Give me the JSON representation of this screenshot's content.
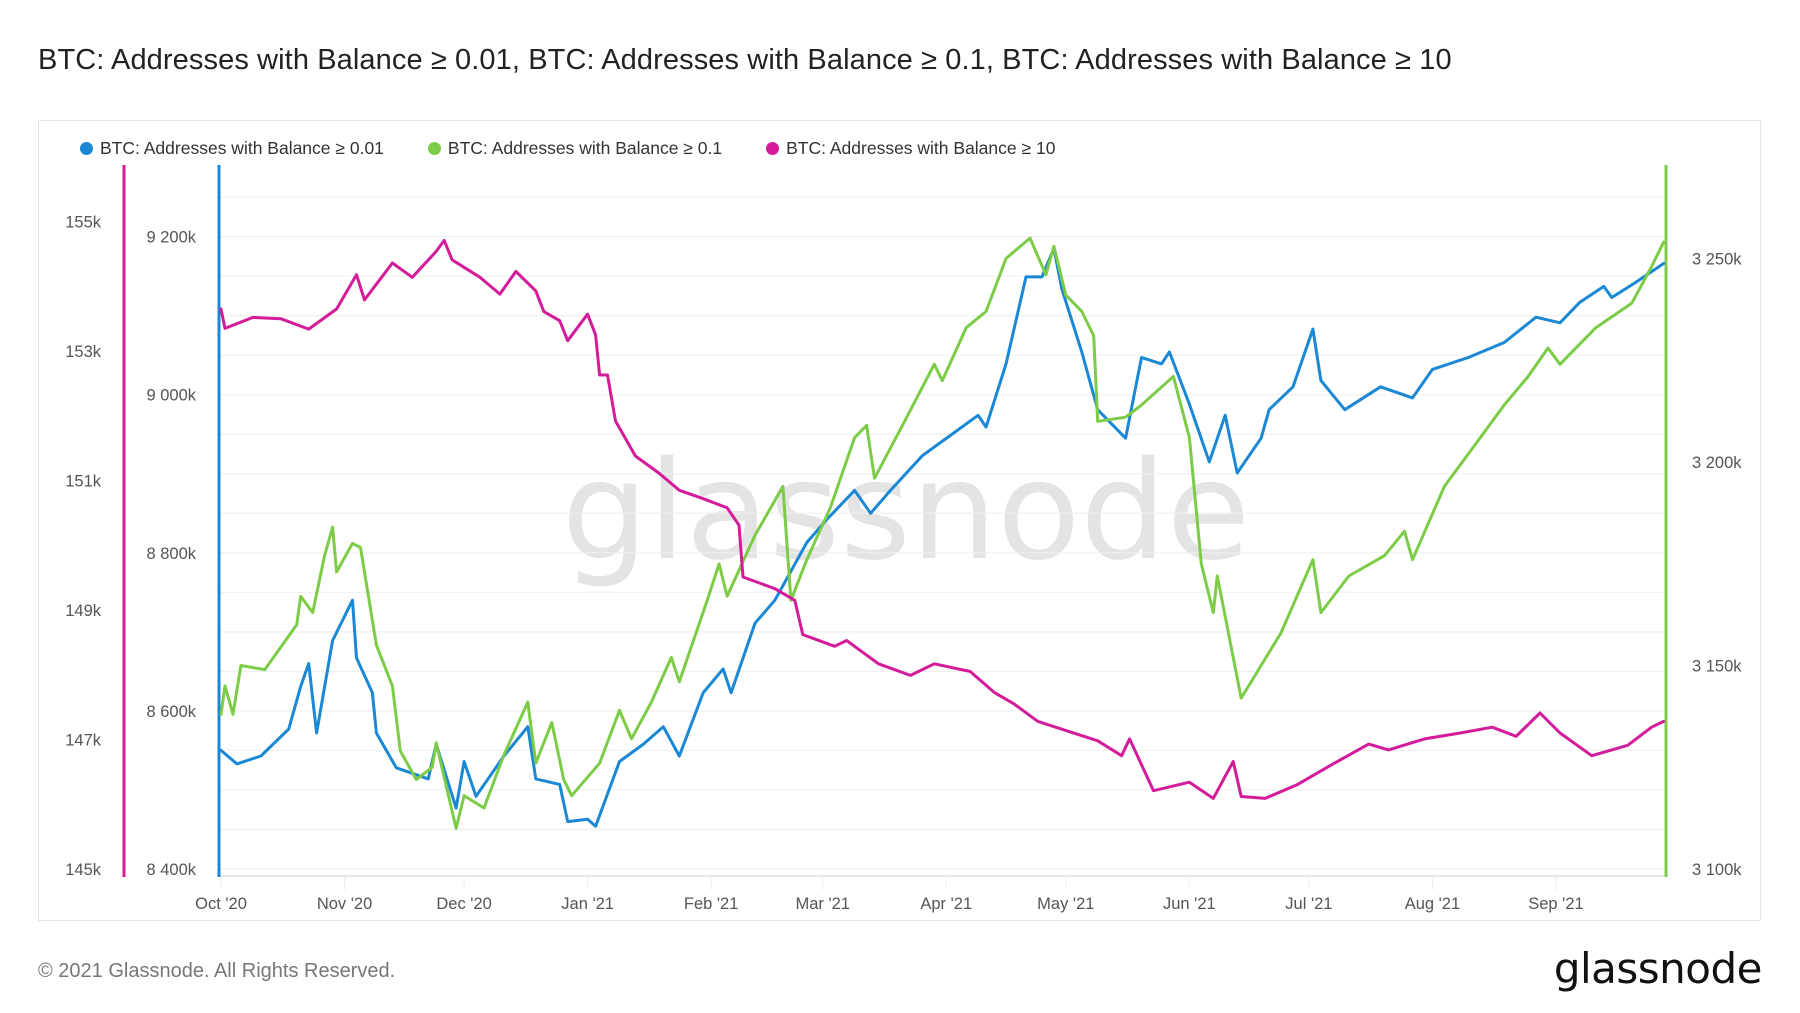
{
  "title": "BTC: Addresses with Balance ≥ 0.01, BTC: Addresses with Balance ≥ 0.1, BTC: Addresses with Balance ≥ 10",
  "footer": {
    "copyright": "© 2021 Glassnode. All Rights Reserved.",
    "logo": "glassnode",
    "watermark": "glassnode"
  },
  "chart_data": {
    "type": "line",
    "title": "BTC: Addresses with Balance ≥ 0.01, BTC: Addresses with Balance ≥ 0.1, BTC: Addresses with Balance ≥ 10",
    "x_unit": "days since 2020-10-01",
    "x_ticks": [
      {
        "label": "Oct '20",
        "day": 0
      },
      {
        "label": "Nov '20",
        "day": 31
      },
      {
        "label": "Dec '20",
        "day": 61
      },
      {
        "label": "Jan '21",
        "day": 92
      },
      {
        "label": "Feb '21",
        "day": 123
      },
      {
        "label": "Mar '21",
        "day": 151
      },
      {
        "label": "Apr '21",
        "day": 182
      },
      {
        "label": "May '21",
        "day": 212
      },
      {
        "label": "Jun '21",
        "day": 243
      },
      {
        "label": "Jul '21",
        "day": 273
      },
      {
        "label": "Aug '21",
        "day": 304
      },
      {
        "label": "Sep '21",
        "day": 335
      }
    ],
    "xlim": [
      0,
      362
    ],
    "axes": {
      "left": {
        "series": "BTC: Addresses with Balance ≥ 10",
        "color": "#d41c9a",
        "ticks": [
          "145k",
          "147k",
          "149k",
          "151k",
          "153k",
          "155k"
        ],
        "tick_values": [
          145,
          147,
          149,
          151,
          153,
          155
        ],
        "ylim": [
          145,
          155
        ],
        "unit": "k"
      },
      "middle": {
        "series": "BTC: Addresses with Balance ≥ 0.01",
        "color": "#1a88d4",
        "ticks": [
          "8 400k",
          "8 600k",
          "8 800k",
          "9 000k",
          "9 200k"
        ],
        "tick_values": [
          8400,
          8600,
          8800,
          9000,
          9200
        ],
        "ylim": [
          8400,
          9200
        ],
        "unit": "k"
      },
      "right": {
        "series": "BTC: Addresses with Balance ≥ 0.1",
        "color": "#7ccc48",
        "ticks": [
          "3 100k",
          "3 150k",
          "3 200k",
          "3 250k"
        ],
        "tick_values": [
          3100,
          3150,
          3200,
          3250
        ],
        "ylim": [
          3100,
          3250
        ],
        "unit": "k"
      }
    },
    "legend_position": "top-left",
    "series": [
      {
        "name": "BTC: Addresses with Balance ≥ 0.01",
        "axis": "middle",
        "color": "#1a88d4",
        "x": [
          0,
          4,
          10,
          17,
          20,
          22,
          24,
          28,
          33,
          34,
          38,
          39,
          44,
          52,
          54,
          59,
          61,
          64,
          71,
          77,
          79,
          85,
          87,
          92,
          94,
          100,
          106,
          111,
          115,
          121,
          126,
          128,
          134,
          139,
          147,
          152,
          159,
          163,
          168,
          176,
          184,
          190,
          192,
          197,
          202,
          206,
          209,
          211,
          216,
          220,
          227,
          231,
          236,
          238,
          243,
          248,
          252,
          255,
          261,
          263,
          269,
          274,
          276,
          282,
          291,
          299,
          304,
          313,
          322,
          330,
          336,
          341,
          347,
          349,
          355,
          362
        ],
        "values": [
          8550,
          8533,
          8543,
          8577,
          8631,
          8660,
          8572,
          8689,
          8740,
          8667,
          8623,
          8572,
          8528,
          8514,
          8558,
          8477,
          8536,
          8492,
          8543,
          8580,
          8514,
          8507,
          8460,
          8463,
          8454,
          8536,
          8558,
          8580,
          8543,
          8623,
          8653,
          8623,
          8711,
          8740,
          8813,
          8842,
          8879,
          8850,
          8879,
          8923,
          8952,
          8974,
          8959,
          9039,
          9149,
          9149,
          9185,
          9134,
          9054,
          8981,
          8945,
          9047,
          9039,
          9054,
          8988,
          8915,
          8974,
          8901,
          8945,
          8981,
          9010,
          9083,
          9018,
          8981,
          9010,
          8996,
          9032,
          9047,
          9066,
          9098,
          9091,
          9117,
          9137,
          9123,
          9142,
          9166
        ]
      },
      {
        "name": "BTC: Addresses with Balance ≥ 0.1",
        "axis": "right",
        "color": "#7ccc48",
        "x": [
          0,
          1,
          3,
          5,
          11,
          19,
          20,
          23,
          26,
          28,
          29,
          33,
          35,
          39,
          43,
          45,
          49,
          53,
          54,
          59,
          61,
          66,
          71,
          77,
          79,
          83,
          86,
          88,
          95,
          100,
          103,
          108,
          113,
          115,
          122,
          125,
          127,
          134,
          141,
          143,
          147,
          153,
          159,
          162,
          164,
          171,
          179,
          181,
          187,
          192,
          197,
          203,
          207,
          209,
          212,
          216,
          219,
          220,
          227,
          231,
          239,
          243,
          246,
          249,
          250,
          254,
          256,
          261,
          266,
          274,
          276,
          283,
          292,
          297,
          299,
          307,
          316,
          322,
          328,
          333,
          336,
          345,
          354,
          359,
          362
        ],
        "values": [
          3138,
          3145,
          3138,
          3150,
          3149,
          3160,
          3167,
          3163,
          3177,
          3184,
          3173,
          3180,
          3179,
          3155,
          3145,
          3129,
          3122,
          3125,
          3131,
          3110,
          3118,
          3115,
          3128,
          3141,
          3126,
          3136,
          3122,
          3118,
          3126,
          3139,
          3132,
          3141,
          3152,
          3146,
          3166,
          3175,
          3167,
          3182,
          3194,
          3166,
          3176,
          3189,
          3206,
          3209,
          3196,
          3209,
          3224,
          3220,
          3233,
          3237,
          3250,
          3255,
          3246,
          3253,
          3241,
          3237,
          3231,
          3210,
          3211,
          3214,
          3221,
          3206,
          3175,
          3163,
          3172,
          3152,
          3142,
          3150,
          3158,
          3176,
          3163,
          3172,
          3177,
          3183,
          3176,
          3194,
          3206,
          3214,
          3221,
          3228,
          3224,
          3233,
          3239,
          3248,
          3254
        ]
      },
      {
        "name": "BTC: Addresses with Balance ≥ 10",
        "axis": "left",
        "color": "#d41c9a",
        "x": [
          0,
          1,
          8,
          15,
          22,
          29,
          34,
          36,
          43,
          48,
          54,
          56,
          58,
          65,
          70,
          74,
          79,
          81,
          85,
          87,
          92,
          94,
          95,
          97,
          99,
          104,
          110,
          115,
          121,
          127,
          130,
          131,
          139,
          144,
          146,
          154,
          157,
          165,
          173,
          179,
          188,
          194,
          199,
          205,
          211,
          220,
          226,
          228,
          234,
          243,
          249,
          254,
          256,
          262,
          270,
          279,
          288,
          293,
          302,
          311,
          319,
          325,
          331,
          336,
          344,
          353,
          359,
          362
        ],
        "values": [
          153.65,
          153.35,
          153.52,
          153.5,
          153.34,
          153.65,
          154.18,
          153.79,
          154.36,
          154.14,
          154.54,
          154.71,
          154.41,
          154.14,
          153.88,
          154.23,
          153.93,
          153.61,
          153.47,
          153.16,
          153.57,
          153.25,
          152.63,
          152.63,
          151.92,
          151.38,
          151.11,
          150.85,
          150.72,
          150.58,
          150.31,
          149.51,
          149.33,
          149.15,
          148.62,
          148.44,
          148.53,
          148.17,
          147.99,
          148.17,
          148.05,
          147.73,
          147.55,
          147.28,
          147.16,
          146.98,
          146.75,
          147.01,
          146.21,
          146.34,
          146.09,
          146.66,
          146.12,
          146.09,
          146.3,
          146.62,
          146.93,
          146.84,
          147.01,
          147.1,
          147.19,
          147.05,
          147.41,
          147.1,
          146.75,
          146.91,
          147.19,
          147.28
        ]
      }
    ]
  }
}
